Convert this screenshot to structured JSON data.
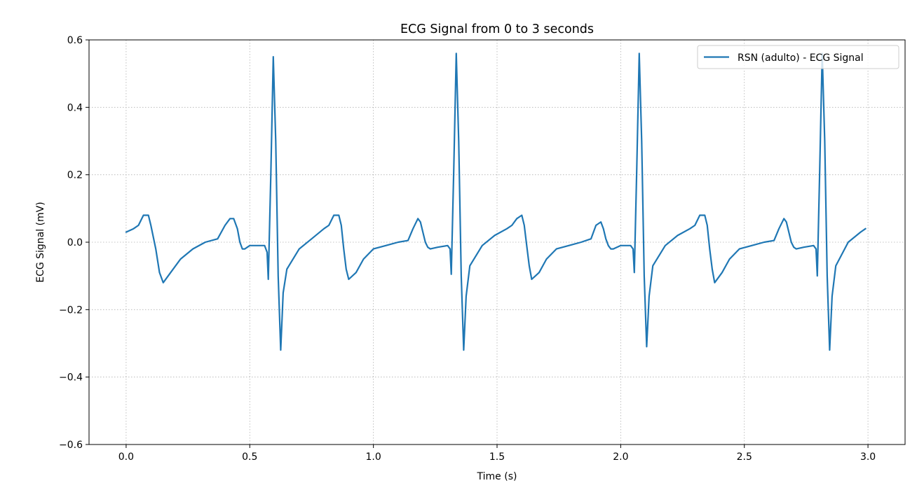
{
  "chart_data": {
    "type": "line",
    "title": "ECG Signal from 0 to 3 seconds",
    "xlabel": "Time (s)",
    "ylabel": "ECG Signal (mV)",
    "xlim": [
      -0.15,
      3.15
    ],
    "ylim": [
      -0.6,
      0.6
    ],
    "xticks": [
      0.0,
      0.5,
      1.0,
      1.5,
      2.0,
      2.5,
      3.0
    ],
    "xtick_labels": [
      "0.0",
      "0.5",
      "1.0",
      "1.5",
      "2.0",
      "2.5",
      "3.0"
    ],
    "yticks": [
      -0.6,
      -0.4,
      -0.2,
      0.0,
      0.2,
      0.4,
      0.6
    ],
    "ytick_labels": [
      "−0.6",
      "−0.4",
      "−0.2",
      "0.0",
      "0.2",
      "0.4",
      "0.6"
    ],
    "grid": true,
    "legend_position": "top-right",
    "series": [
      {
        "name": "RSN (adulto) - ECG Signal",
        "color": "#1f77b4",
        "x": [
          0.0,
          0.03,
          0.05,
          0.07,
          0.09,
          0.1,
          0.12,
          0.135,
          0.15,
          0.18,
          0.22,
          0.27,
          0.32,
          0.37,
          0.4,
          0.42,
          0.435,
          0.45,
          0.46,
          0.47,
          0.48,
          0.49,
          0.5,
          0.53,
          0.56,
          0.57,
          0.575,
          0.585,
          0.595,
          0.605,
          0.615,
          0.625,
          0.635,
          0.65,
          0.7,
          0.75,
          0.8,
          0.82,
          0.84,
          0.86,
          0.87,
          0.88,
          0.89,
          0.9,
          0.93,
          0.96,
          1.0,
          1.05,
          1.1,
          1.14,
          1.16,
          1.18,
          1.19,
          1.2,
          1.21,
          1.22,
          1.23,
          1.26,
          1.3,
          1.31,
          1.315,
          1.325,
          1.335,
          1.345,
          1.355,
          1.365,
          1.375,
          1.39,
          1.44,
          1.49,
          1.54,
          1.56,
          1.58,
          1.6,
          1.61,
          1.62,
          1.63,
          1.64,
          1.67,
          1.7,
          1.74,
          1.79,
          1.84,
          1.88,
          1.9,
          1.92,
          1.93,
          1.94,
          1.95,
          1.96,
          1.97,
          2.0,
          2.04,
          2.05,
          2.055,
          2.065,
          2.075,
          2.085,
          2.095,
          2.105,
          2.115,
          2.13,
          2.18,
          2.23,
          2.28,
          2.3,
          2.32,
          2.34,
          2.35,
          2.36,
          2.37,
          2.38,
          2.41,
          2.44,
          2.48,
          2.53,
          2.58,
          2.62,
          2.64,
          2.66,
          2.67,
          2.68,
          2.69,
          2.7,
          2.71,
          2.74,
          2.78,
          2.79,
          2.795,
          2.805,
          2.815,
          2.825,
          2.835,
          2.845,
          2.855,
          2.87,
          2.92,
          2.97,
          2.99
        ],
        "y": [
          0.03,
          0.04,
          0.05,
          0.08,
          0.08,
          0.05,
          -0.02,
          -0.09,
          -0.12,
          -0.09,
          -0.05,
          -0.02,
          0.0,
          0.01,
          0.05,
          0.07,
          0.07,
          0.04,
          0.0,
          -0.02,
          -0.02,
          -0.015,
          -0.01,
          -0.01,
          -0.01,
          -0.03,
          -0.11,
          0.2,
          0.55,
          0.3,
          -0.1,
          -0.32,
          -0.15,
          -0.08,
          -0.02,
          0.01,
          0.04,
          0.05,
          0.08,
          0.08,
          0.05,
          -0.02,
          -0.08,
          -0.11,
          -0.09,
          -0.05,
          -0.02,
          -0.01,
          0.0,
          0.005,
          0.04,
          0.07,
          0.06,
          0.03,
          0.0,
          -0.015,
          -0.02,
          -0.015,
          -0.01,
          -0.02,
          -0.095,
          0.22,
          0.56,
          0.3,
          -0.1,
          -0.32,
          -0.16,
          -0.07,
          -0.01,
          0.02,
          0.04,
          0.05,
          0.07,
          0.08,
          0.05,
          -0.01,
          -0.07,
          -0.11,
          -0.09,
          -0.05,
          -0.02,
          -0.01,
          0.0,
          0.01,
          0.05,
          0.06,
          0.04,
          0.01,
          -0.01,
          -0.02,
          -0.02,
          -0.01,
          -0.01,
          -0.02,
          -0.09,
          0.22,
          0.56,
          0.3,
          -0.1,
          -0.31,
          -0.16,
          -0.07,
          -0.01,
          0.02,
          0.04,
          0.05,
          0.08,
          0.08,
          0.05,
          -0.02,
          -0.08,
          -0.12,
          -0.09,
          -0.05,
          -0.02,
          -0.01,
          0.0,
          0.005,
          0.04,
          0.07,
          0.06,
          0.03,
          0.0,
          -0.015,
          -0.02,
          -0.015,
          -0.01,
          -0.02,
          -0.1,
          0.22,
          0.56,
          0.3,
          -0.1,
          -0.32,
          -0.16,
          -0.07,
          0.0,
          0.03,
          0.04
        ]
      }
    ]
  }
}
